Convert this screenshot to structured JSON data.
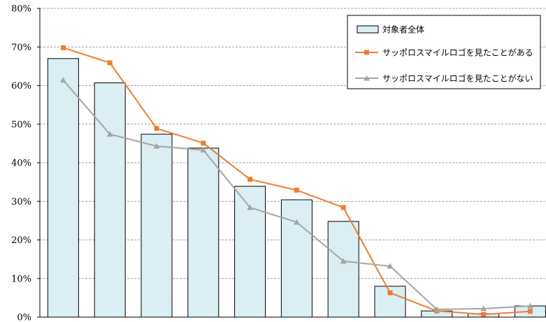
{
  "chart_data": {
    "type": "bar",
    "series": [
      {
        "name": "対象者全体",
        "type": "bar",
        "color": "#daeef3",
        "values": [
          67.0,
          60.7,
          47.4,
          43.8,
          33.9,
          30.4,
          24.8,
          8.0,
          1.6,
          0.9,
          2.9
        ]
      },
      {
        "name": "サッポロスマイルロゴを見たことがある",
        "type": "line",
        "marker": "square",
        "color": "#ed7d31",
        "values": [
          69.8,
          65.9,
          48.9,
          45.1,
          35.7,
          32.9,
          28.4,
          6.3,
          1.6,
          0.7,
          1.5
        ]
      },
      {
        "name": "サッポロスマイルロゴを見たことがない",
        "type": "line",
        "marker": "triangle",
        "color": "#a5a5a5",
        "values": [
          61.4,
          47.4,
          44.3,
          43.3,
          28.4,
          24.6,
          14.5,
          13.2,
          2.0,
          2.2,
          2.9
        ]
      }
    ],
    "ylim": [
      0,
      80
    ],
    "yticks": [
      0,
      10,
      20,
      30,
      40,
      50,
      60,
      70,
      80
    ],
    "ytick_labels": [
      "0%",
      "10%",
      "20%",
      "30%",
      "40%",
      "50%",
      "60%",
      "70%",
      "80%"
    ],
    "grid": true,
    "legend": "top-right"
  }
}
